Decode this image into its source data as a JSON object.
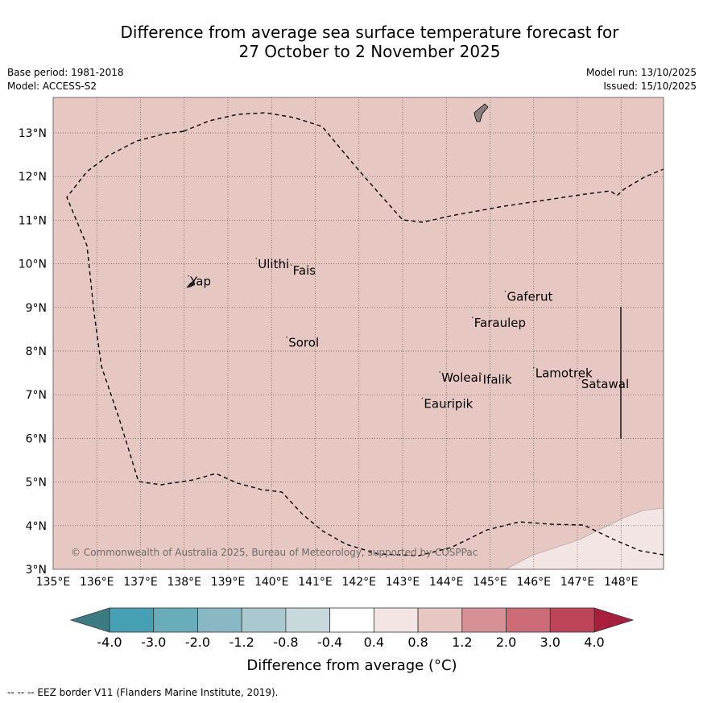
{
  "title_line1": "Difference from average sea surface temperature forecast for",
  "title_line2": "27 October to 2 November 2025",
  "meta_left": [
    "Base period: 1981-2018",
    "Model: ACCESS-S2"
  ],
  "meta_right": [
    "Model run: 13/10/2025",
    "Issued: 15/10/2025"
  ],
  "map": {
    "lon_range": [
      135,
      149
    ],
    "lat_range": [
      3,
      13.8
    ],
    "lon_ticks": [
      "135°E",
      "136°E",
      "137°E",
      "138°E",
      "139°E",
      "140°E",
      "141°E",
      "142°E",
      "143°E",
      "144°E",
      "145°E",
      "146°E",
      "147°E",
      "148°E"
    ],
    "lat_ticks": [
      "3°N",
      "4°N",
      "5°N",
      "6°N",
      "7°N",
      "8°N",
      "9°N",
      "10°N",
      "11°N",
      "12°N",
      "13°N"
    ],
    "background_anomaly_class": "0.8 to 1.2",
    "places": [
      {
        "name": "Yap",
        "lon": 138.1,
        "lat": 9.5
      },
      {
        "name": "Ulithi",
        "lon": 139.65,
        "lat": 9.9
      },
      {
        "name": "Fais",
        "lon": 140.45,
        "lat": 9.75
      },
      {
        "name": "Sorol",
        "lon": 140.35,
        "lat": 8.1
      },
      {
        "name": "Gaferut",
        "lon": 145.35,
        "lat": 9.15
      },
      {
        "name": "Faraulep",
        "lon": 144.6,
        "lat": 8.55
      },
      {
        "name": "Lamotrek",
        "lon": 146.0,
        "lat": 7.4
      },
      {
        "name": "Satawal",
        "lon": 147.05,
        "lat": 7.15
      },
      {
        "name": "Woleai",
        "lon": 143.85,
        "lat": 7.3
      },
      {
        "name": "Ifalik",
        "lon": 144.8,
        "lat": 7.25
      },
      {
        "name": "Eauripik",
        "lon": 143.45,
        "lat": 6.7
      }
    ],
    "copyright": "© Commonwealth of Australia 2025, Bureau of Meteorology, supported by COSPPac"
  },
  "colorbar": {
    "labels": [
      "-4.0",
      "-3.0",
      "-2.0",
      "-1.2",
      "-0.8",
      "-0.4",
      "0.4",
      "0.8",
      "1.2",
      "2.0",
      "3.0",
      "4.0"
    ],
    "under_color": "#3c7b84",
    "over_color": "#a81e3c",
    "colors": [
      "#44a0b2",
      "#69adbb",
      "#88b8c4",
      "#a9c8cf",
      "#c8d9dd",
      "#ffffff",
      "#f3e5e3",
      "#e7c7c2",
      "#d89097",
      "#cd6b77",
      "#be4557"
    ],
    "title": "Difference from average (°C)"
  },
  "footer": "-- -- -- EEZ border V11 (Flanders Marine Institute, 2019)."
}
